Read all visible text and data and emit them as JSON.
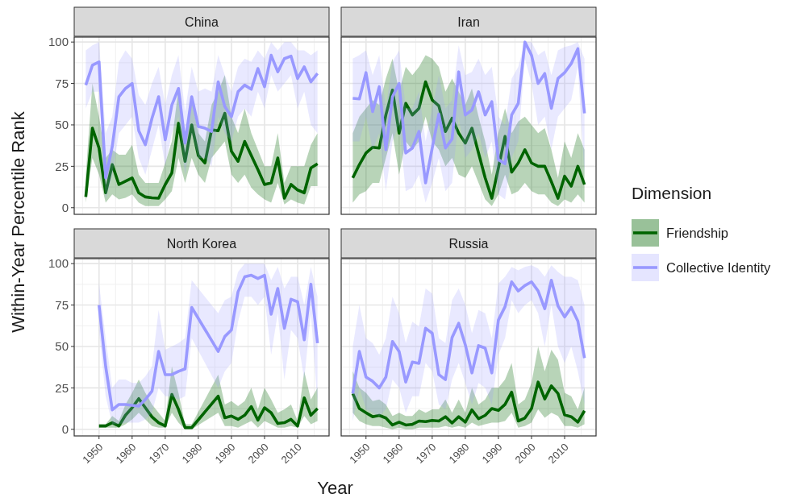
{
  "chart_data": [
    {
      "type": "line",
      "title": "China",
      "ylabel": "Within-Year Percentile Rank",
      "legend_title": "Dimension",
      "legend": "right",
      "grid": true,
      "tick_labels": "y",
      "x": [
        1946,
        1948,
        1950,
        1952,
        1954,
        1956,
        1958,
        1960,
        1962,
        1964,
        1966,
        1968,
        1970,
        1972,
        1974,
        1976,
        1978,
        1980,
        1982,
        1984,
        1986,
        1988,
        1990,
        1992,
        1994,
        1996,
        1998,
        2000,
        2002,
        2004,
        2006,
        2008,
        2010,
        2012,
        2014,
        2016
      ],
      "xlim": [
        1942.5,
        2019.5
      ],
      "xticks": [
        1950,
        1960,
        1970,
        1980,
        1990,
        2000,
        2010
      ],
      "ylim": [
        -4,
        103
      ],
      "yticks": [
        0,
        25,
        50,
        75,
        100
      ],
      "series": [
        {
          "name": "Friendship",
          "color": "#006400",
          "values": [
            6.5,
            48,
            36,
            9,
            26,
            14,
            16,
            18,
            9,
            6.5,
            6,
            5.7,
            14,
            21,
            51,
            28,
            50,
            31.5,
            27,
            47,
            46.5,
            57,
            34,
            28,
            40,
            31.5,
            23,
            14,
            15,
            30,
            5.7,
            14,
            10.7,
            9,
            24,
            26.5
          ],
          "lower": [
            3,
            30,
            20,
            3,
            8,
            5,
            6,
            8,
            3,
            1,
            1,
            1,
            5,
            10,
            30,
            15,
            30,
            20,
            15,
            30,
            35,
            40,
            20,
            15,
            20,
            12,
            8,
            5,
            3,
            15,
            2,
            5,
            3,
            2,
            13,
            13
          ],
          "upper": [
            20,
            75,
            55,
            30,
            35,
            32,
            32,
            38,
            20,
            15,
            15,
            15,
            27,
            40,
            72,
            45,
            65,
            45,
            40,
            62,
            70,
            80,
            55,
            45,
            60,
            45,
            35,
            25,
            25,
            45,
            15,
            25,
            25,
            25,
            38,
            45
          ]
        },
        {
          "name": "Collective Identity",
          "color": "#9999ff",
          "values": [
            74,
            86,
            88,
            18,
            37,
            67,
            72,
            75,
            46.5,
            38,
            54,
            67,
            41,
            62,
            72,
            39,
            67,
            49,
            48,
            46,
            76,
            61,
            55,
            70,
            74,
            71.5,
            84,
            73,
            92,
            82,
            90,
            91.5,
            78,
            85,
            76,
            81
          ],
          "lower": [
            60,
            70,
            70,
            5,
            20,
            45,
            50,
            55,
            30,
            20,
            35,
            50,
            25,
            45,
            55,
            20,
            45,
            30,
            30,
            25,
            55,
            45,
            40,
            55,
            60,
            55,
            70,
            60,
            80,
            70,
            75,
            80,
            60,
            70,
            50,
            45
          ],
          "upper": [
            95,
            98,
            100,
            45,
            55,
            88,
            95,
            90,
            68,
            62,
            75,
            85,
            62,
            80,
            92,
            58,
            85,
            70,
            72,
            70,
            92,
            80,
            70,
            85,
            90,
            88,
            95,
            90,
            100,
            95,
            100,
            100,
            95,
            95,
            92,
            95
          ]
        }
      ]
    },
    {
      "type": "line",
      "title": "Iran",
      "grid": true,
      "tick_labels": false,
      "x": [
        1946,
        1948,
        1950,
        1952,
        1954,
        1956,
        1958,
        1960,
        1962,
        1964,
        1966,
        1968,
        1970,
        1972,
        1974,
        1976,
        1978,
        1980,
        1982,
        1984,
        1986,
        1988,
        1990,
        1992,
        1994,
        1996,
        1998,
        2000,
        2002,
        2004,
        2006,
        2008,
        2010,
        2012,
        2014,
        2016
      ],
      "xlim": [
        1942.5,
        2019.5
      ],
      "xticks": [
        1950,
        1960,
        1970,
        1980,
        1990,
        2000,
        2010
      ],
      "ylim": [
        -4,
        103
      ],
      "yticks": [
        0,
        25,
        50,
        75,
        100
      ],
      "series": [
        {
          "color": "#006400",
          "values": [
            18,
            26,
            33,
            36.5,
            36,
            56,
            71,
            45,
            63,
            56,
            60,
            76,
            65,
            61.5,
            46,
            54,
            45,
            39,
            48,
            33,
            18,
            5.7,
            24,
            43,
            21.5,
            27,
            35,
            27,
            25,
            25,
            15.7,
            5.7,
            19,
            13,
            25,
            14
          ],
          "lower": [
            3,
            8,
            10,
            15,
            15,
            30,
            45,
            20,
            40,
            35,
            40,
            55,
            40,
            35,
            25,
            30,
            20,
            18,
            25,
            15,
            5,
            1,
            8,
            20,
            8,
            10,
            15,
            10,
            8,
            8,
            3,
            1,
            5,
            3,
            8,
            3
          ],
          "upper": [
            45,
            55,
            60,
            65,
            62,
            78,
            90,
            70,
            85,
            80,
            85,
            92,
            90,
            85,
            70,
            78,
            70,
            62,
            72,
            55,
            40,
            20,
            45,
            60,
            45,
            52,
            55,
            50,
            45,
            48,
            35,
            18,
            40,
            30,
            45,
            35
          ]
        },
        {
          "color": "#9999ff",
          "values": [
            66,
            65.7,
            81.5,
            58,
            73,
            35,
            67,
            75,
            33,
            36,
            46,
            15,
            36,
            56.5,
            36,
            41.5,
            82,
            56,
            59,
            70,
            56,
            64,
            29,
            26.5,
            56,
            63,
            100,
            92,
            75,
            81,
            60,
            78,
            81.5,
            87,
            96,
            57
          ],
          "lower": [
            40,
            40,
            55,
            35,
            45,
            10,
            40,
            50,
            10,
            12,
            20,
            3,
            15,
            30,
            10,
            15,
            55,
            30,
            35,
            45,
            30,
            40,
            8,
            5,
            30,
            40,
            90,
            75,
            50,
            55,
            35,
            55,
            60,
            65,
            85,
            20
          ],
          "upper": [
            90,
            92,
            95,
            80,
            92,
            60,
            88,
            95,
            60,
            60,
            70,
            40,
            60,
            80,
            60,
            65,
            98,
            80,
            82,
            90,
            80,
            85,
            55,
            50,
            78,
            85,
            100,
            100,
            92,
            95,
            80,
            95,
            97,
            98,
            100,
            90
          ]
        }
      ]
    },
    {
      "type": "line",
      "title": "North Korea",
      "xlabel": "Year",
      "grid": true,
      "x": [
        1950,
        1952,
        1954,
        1956,
        1958,
        1960,
        1962,
        1964,
        1966,
        1968,
        1970,
        1972,
        1974,
        1976,
        1978,
        1986,
        1988,
        1990,
        1992,
        1994,
        1996,
        1998,
        2000,
        2002,
        2004,
        2006,
        2008,
        2010,
        2012,
        2014,
        2016
      ],
      "xlim": [
        1942.5,
        2019.5
      ],
      "xticks": [
        1950,
        1960,
        1970,
        1980,
        1990,
        2000,
        2010
      ],
      "ylim": [
        -4,
        103
      ],
      "yticks": [
        0,
        25,
        50,
        75,
        100
      ],
      "series": [
        {
          "color": "#006400",
          "values": [
            2,
            2,
            4,
            2,
            8.5,
            13,
            18.5,
            13,
            7.5,
            4,
            2,
            21,
            12,
            1,
            1,
            20,
            7,
            8,
            6,
            8.5,
            13.7,
            5.5,
            13,
            10,
            3.5,
            4,
            6,
            2,
            19,
            8.5,
            12.5
          ],
          "lower": [
            1,
            1,
            1,
            1,
            3,
            6,
            10,
            6,
            2,
            1,
            1,
            10,
            4,
            0,
            0,
            10,
            2,
            2,
            1,
            3,
            5,
            1,
            5,
            3,
            1,
            1,
            2,
            1,
            8,
            3,
            5
          ],
          "upper": [
            3,
            3,
            8,
            5,
            15,
            22,
            30,
            22,
            15,
            10,
            5,
            38,
            22,
            3,
            3,
            33,
            15,
            17,
            14,
            17,
            25,
            12,
            25,
            18,
            10,
            12,
            15,
            5,
            35,
            18,
            25
          ]
        },
        {
          "color": "#9999ff",
          "values": [
            75,
            38,
            11.7,
            15,
            15,
            14.5,
            14,
            18,
            23,
            47,
            33,
            33,
            35,
            36.5,
            73.6,
            47,
            56,
            60,
            83,
            92,
            93,
            91,
            93,
            69.5,
            85,
            61,
            78.5,
            77,
            54,
            87.6,
            52
          ],
          "lower": [
            60,
            20,
            3,
            3,
            4,
            4,
            4,
            6,
            10,
            25,
            20,
            20,
            18,
            20,
            55,
            25,
            35,
            40,
            65,
            80,
            80,
            75,
            80,
            45,
            70,
            30,
            60,
            55,
            30,
            70,
            15
          ],
          "upper": [
            88,
            55,
            25,
            30,
            30,
            28,
            28,
            32,
            38,
            72,
            48,
            50,
            52,
            55,
            90,
            70,
            78,
            80,
            95,
            100,
            100,
            100,
            100,
            90,
            98,
            85,
            92,
            92,
            75,
            98,
            80
          ]
        }
      ]
    },
    {
      "type": "line",
      "title": "Russia",
      "grid": true,
      "tick_labels": "x",
      "x": [
        1946,
        1948,
        1950,
        1952,
        1954,
        1956,
        1958,
        1960,
        1962,
        1964,
        1966,
        1968,
        1970,
        1972,
        1974,
        1976,
        1978,
        1980,
        1982,
        1984,
        1986,
        1988,
        1990,
        1992,
        1994,
        1996,
        1998,
        2000,
        2002,
        2004,
        2006,
        2008,
        2010,
        2012,
        2014,
        2016
      ],
      "xlim": [
        1942.5,
        2019.5
      ],
      "xticks": [
        1950,
        1960,
        1970,
        1980,
        1990,
        2000,
        2010
      ],
      "ylim": [
        -4,
        103
      ],
      "yticks": [
        0,
        25,
        50,
        75,
        100
      ],
      "series": [
        {
          "color": "#006400",
          "values": [
            21.6,
            12.5,
            10,
            7.6,
            8.4,
            6.8,
            2.6,
            4.3,
            2.6,
            3,
            5,
            4.6,
            5.4,
            5,
            7.6,
            3.8,
            7.6,
            4.3,
            11.7,
            6.4,
            8.4,
            12.5,
            11.4,
            15,
            22.4,
            5,
            6.8,
            12.5,
            28.5,
            18.3,
            26.2,
            21.6,
            8.7,
            7.6,
            4.3,
            11.2
          ],
          "lower": [
            10,
            5,
            3,
            2,
            2,
            1,
            0,
            1,
            0,
            0,
            1,
            1,
            1,
            1,
            2,
            1,
            2,
            1,
            4,
            2,
            3,
            4,
            4,
            5,
            10,
            1,
            2,
            4,
            12,
            7,
            10,
            8,
            2,
            2,
            1,
            3
          ],
          "upper": [
            35,
            25,
            22,
            17,
            18,
            15,
            8,
            10,
            8,
            8,
            12,
            10,
            12,
            12,
            18,
            10,
            18,
            10,
            25,
            15,
            18,
            25,
            25,
            30,
            40,
            15,
            18,
            28,
            50,
            35,
            48,
            42,
            22,
            20,
            12,
            25
          ]
        },
        {
          "color": "#9999ff",
          "values": [
            21.6,
            47,
            31.5,
            29,
            25,
            31.5,
            53,
            47,
            28.5,
            40.6,
            39.8,
            61,
            58,
            33,
            30,
            55.4,
            64,
            51,
            34,
            50.5,
            49,
            34,
            66,
            74,
            89,
            83.5,
            86.8,
            89,
            83.5,
            72.8,
            90,
            74.4,
            67.8,
            73.6,
            65.3,
            43
          ],
          "lower": [
            5,
            25,
            12,
            10,
            8,
            12,
            30,
            25,
            10,
            20,
            20,
            40,
            35,
            15,
            12,
            30,
            40,
            28,
            15,
            28,
            25,
            15,
            45,
            55,
            78,
            70,
            75,
            78,
            70,
            50,
            75,
            50,
            40,
            50,
            35,
            15
          ],
          "upper": [
            50,
            75,
            55,
            52,
            45,
            55,
            80,
            70,
            52,
            65,
            62,
            85,
            82,
            55,
            52,
            78,
            85,
            75,
            58,
            72,
            70,
            55,
            88,
            92,
            98,
            96,
            98,
            99,
            97,
            92,
            99,
            95,
            92,
            92,
            90,
            75
          ]
        }
      ]
    }
  ]
}
